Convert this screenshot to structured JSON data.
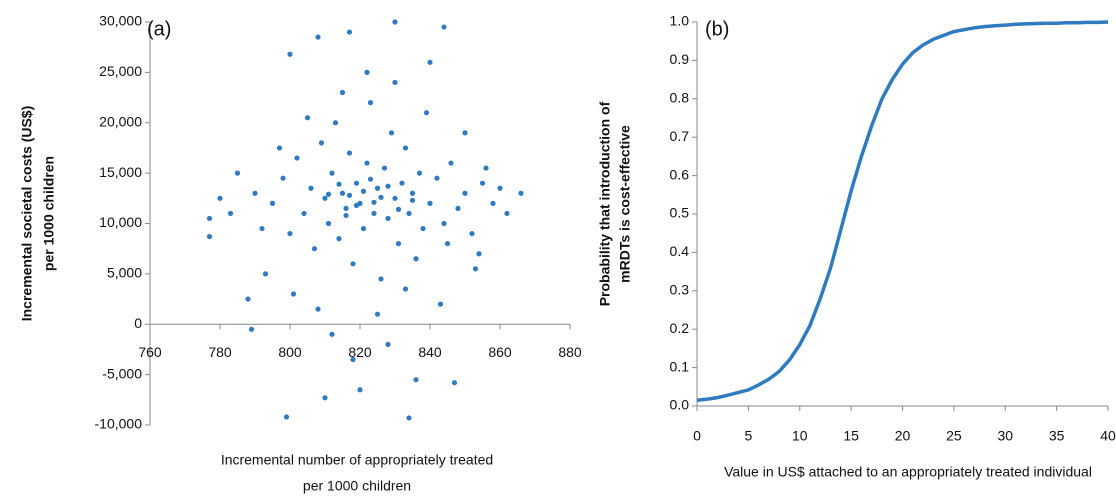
{
  "chart_data": [
    {
      "type": "scatter",
      "panel_label": "(a)",
      "x_label": [
        "Incremental number of appropriately treated",
        "per 1000 children"
      ],
      "y_label": [
        "Incremental societal costs (US$)",
        "per 1000 children"
      ],
      "color": "#2f7bc1",
      "x": [
        795,
        798,
        800,
        802,
        804,
        806,
        807,
        809,
        810,
        811,
        812,
        813,
        814,
        815,
        816,
        817,
        818,
        819,
        820,
        821,
        822,
        823,
        824,
        825,
        826,
        827,
        828,
        829,
        830,
        831,
        832,
        833,
        834,
        835,
        836,
        837,
        838,
        839,
        840,
        842,
        844,
        846,
        848,
        850,
        852,
        855,
        858,
        862,
        790,
        792,
        785,
        788,
        793,
        797,
        801,
        805,
        808,
        812,
        815,
        818,
        822,
        825,
        828,
        830,
        833,
        836,
        840,
        843,
        847,
        850,
        853,
        856,
        845,
        817,
        821,
        824,
        819,
        826,
        814,
        831,
        828,
        816,
        823,
        835,
        811,
        777,
        777,
        866,
        834,
        799,
        830,
        844,
        817,
        808,
        800,
        810,
        820,
        789,
        780,
        783,
        860,
        854
      ],
      "y": [
        12000,
        14500,
        9000,
        16500,
        11000,
        13500,
        7500,
        18000,
        12500,
        10000,
        15000,
        20000,
        8500,
        13000,
        11500,
        17000,
        6000,
        14000,
        12000,
        9500,
        16000,
        22000,
        11000,
        13500,
        4500,
        15500,
        10500,
        19000,
        12500,
        8000,
        14000,
        17500,
        11000,
        13000,
        6500,
        15000,
        9500,
        21000,
        12000,
        14500,
        10000,
        16000,
        11500,
        13000,
        9000,
        14000,
        12000,
        11000,
        13000,
        9500,
        15000,
        2500,
        5000,
        17500,
        3000,
        20500,
        1500,
        -1000,
        23000,
        -3500,
        25000,
        1000,
        -2000,
        24000,
        3500,
        -5500,
        26000,
        2000,
        -5800,
        19000,
        5500,
        15500,
        8000,
        12800,
        13200,
        12100,
        11800,
        12600,
        13900,
        11400,
        13700,
        10800,
        14400,
        12300,
        12900,
        10500,
        8700,
        13000,
        -9300,
        -9200,
        30000,
        29500,
        29000,
        28500,
        26800,
        -7300,
        -6500,
        -500,
        12500,
        11000,
        13500,
        7000
      ],
      "xlim": [
        760,
        880
      ],
      "xticks": [
        760,
        780,
        800,
        820,
        840,
        860,
        880
      ],
      "ylim": [
        -10000,
        30000
      ],
      "yticks": [
        {
          "value": -10000,
          "label": "-10,000"
        },
        {
          "value": -5000,
          "label": "-5,000"
        },
        0,
        {
          "value": 5000,
          "label": "5,000"
        },
        {
          "value": 10000,
          "label": "10,000"
        },
        {
          "value": 15000,
          "label": "15,000"
        },
        {
          "value": 20000,
          "label": "20,000"
        },
        {
          "value": 25000,
          "label": "25,000"
        },
        {
          "value": 30000,
          "label": "30,000"
        }
      ]
    },
    {
      "type": "line",
      "panel_label": "(b)",
      "x_label": [
        "Value in US$ attached to an appropriately treated individual"
      ],
      "y_label": [
        "Probability that introduction of",
        "mRDTs is cost-effective"
      ],
      "color": "#2f7bc1",
      "x": [
        0,
        1,
        2,
        3,
        4,
        5,
        6,
        7,
        8,
        9,
        10,
        11,
        12,
        13,
        14,
        15,
        16,
        17,
        18,
        19,
        20,
        21,
        22,
        23,
        24,
        25,
        26,
        27,
        28,
        29,
        30,
        31,
        32,
        33,
        34,
        35,
        36,
        37,
        38,
        39,
        40
      ],
      "y": [
        0.015,
        0.018,
        0.022,
        0.028,
        0.035,
        0.042,
        0.055,
        0.07,
        0.09,
        0.12,
        0.16,
        0.21,
        0.28,
        0.36,
        0.46,
        0.56,
        0.65,
        0.73,
        0.8,
        0.85,
        0.89,
        0.92,
        0.94,
        0.955,
        0.965,
        0.975,
        0.98,
        0.985,
        0.988,
        0.99,
        0.992,
        0.994,
        0.995,
        0.996,
        0.997,
        0.997,
        0.998,
        0.998,
        0.999,
        0.999,
        1.0
      ],
      "xlim": [
        0,
        40
      ],
      "xticks": [
        0,
        5,
        10,
        15,
        20,
        25,
        30,
        35,
        40
      ],
      "ylim": [
        0,
        1
      ],
      "yticks": [
        {
          "value": 0,
          "label": "0.0"
        },
        0.1,
        0.2,
        0.3,
        0.4,
        0.5,
        0.6,
        0.7,
        0.8,
        0.9,
        {
          "value": 1,
          "label": "1.0"
        }
      ]
    }
  ]
}
